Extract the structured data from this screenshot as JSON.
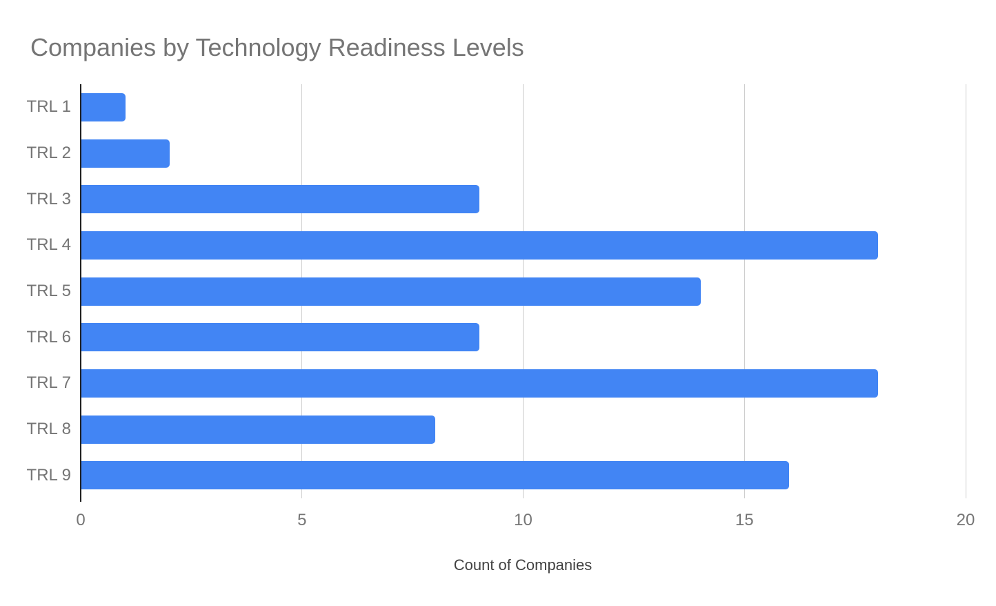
{
  "chart_data": {
    "type": "bar",
    "orientation": "horizontal",
    "title": "Companies by Technology Readiness Levels",
    "xlabel": "Count of Companies",
    "ylabel": "",
    "categories": [
      "TRL 1",
      "TRL 2",
      "TRL 3",
      "TRL 4",
      "TRL 5",
      "TRL 6",
      "TRL 7",
      "TRL 8",
      "TRL 9"
    ],
    "values": [
      1,
      2,
      9,
      18,
      14,
      9,
      18,
      8,
      16
    ],
    "xlim": [
      0,
      20
    ],
    "xticks": [
      0,
      5,
      10,
      15,
      20
    ],
    "grid": true,
    "legend": false,
    "colors": {
      "bar": "#4285f4",
      "title_text": "#757575",
      "tick_label_text": "#757575",
      "x_axis_title_text": "#424242",
      "axis_line": "#212121",
      "gridline": "#cccccc",
      "background": "#ffffff"
    }
  }
}
